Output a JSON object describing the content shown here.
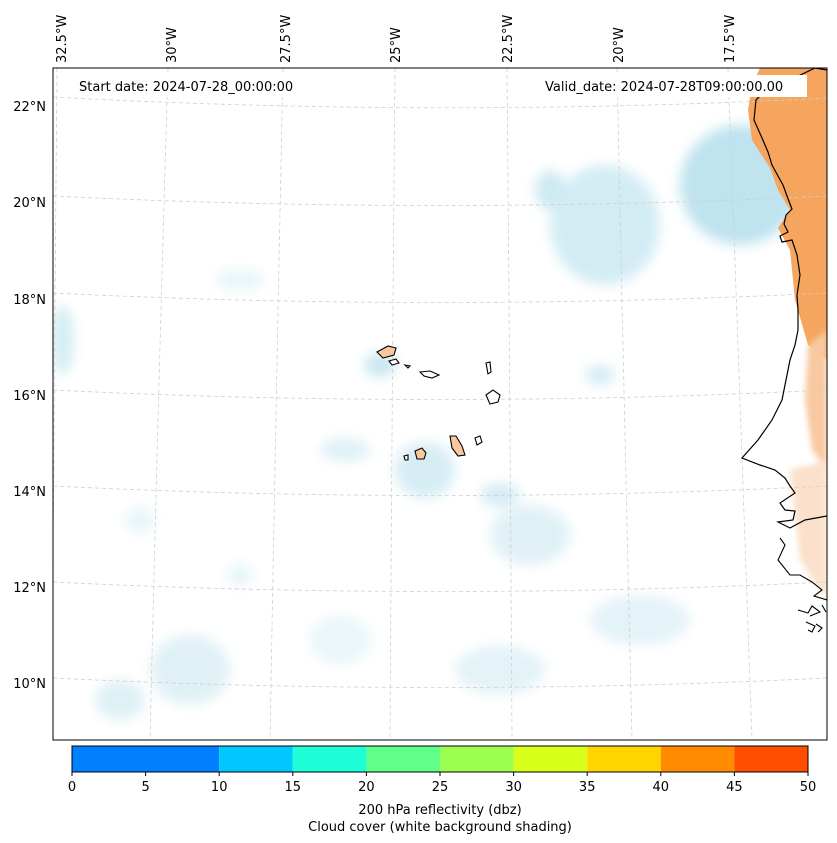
{
  "map": {
    "start_date": "Start date: 2024-07-28_00:00:00",
    "valid_date": "Valid_date: 2024-07-28T09:00:00.00",
    "lon_labels": [
      "32.5°W",
      "30°W",
      "27.5°W",
      "25°W",
      "22.5°W",
      "20°W",
      "17.5°W"
    ],
    "lat_labels": [
      "22°N",
      "20°N",
      "18°N",
      "16°N",
      "14°N",
      "12°N",
      "10°N"
    ],
    "gridlines": "dashed, light gray",
    "features": [
      "coastline of West Africa",
      "Cape Verde islands"
    ],
    "colors": {
      "land_fill": "#f6a55e",
      "land_light": "#f8c9a0",
      "cloud_blue": "#bfe3ef",
      "cloud_pale": "#e4f3f8",
      "coastline": "#000000"
    }
  },
  "colorbar": {
    "label_line1": "200 hPa reflectivity (dbz)",
    "label_line2": "Cloud cover (white background shading)",
    "ticks": [
      "0",
      "5",
      "10",
      "15",
      "20",
      "25",
      "30",
      "35",
      "40",
      "45",
      "50"
    ],
    "tick_values": [
      0,
      5,
      10,
      15,
      20,
      25,
      30,
      35,
      40,
      45,
      50
    ],
    "colors": [
      "#0080ff",
      "#00c8ff",
      "#1effd8",
      "#60ff8a",
      "#9cff50",
      "#d8ff1a",
      "#ffd500",
      "#ff8b00",
      "#ff4e00"
    ]
  }
}
